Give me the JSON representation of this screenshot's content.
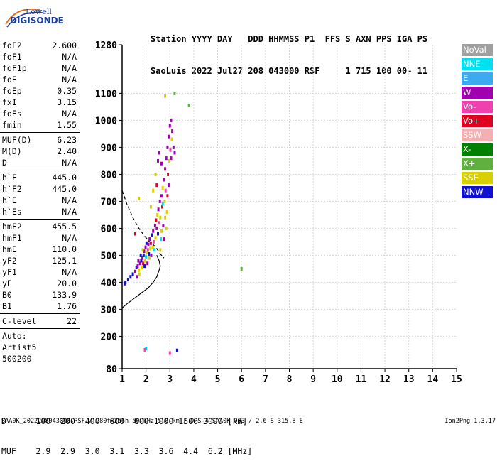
{
  "logo": {
    "brand": "Lowell",
    "product": "DIGISONDE"
  },
  "header": {
    "line1": "Station YYYY DAY   DDD HHMMSS P1  FFS S AXN PPS IGA PS",
    "line2": "SaoLuis 2022 Jul27 208 043000 RSF     1 715 100 00- 11"
  },
  "params": {
    "group1": [
      {
        "label": "foF2",
        "value": "2.600"
      },
      {
        "label": "foF1",
        "value": "N/A"
      },
      {
        "label": "foF1p",
        "value": "N/A"
      },
      {
        "label": "foE",
        "value": "N/A"
      },
      {
        "label": "foEp",
        "value": "0.35"
      },
      {
        "label": "fxI",
        "value": "3.15"
      },
      {
        "label": "foEs",
        "value": "N/A"
      },
      {
        "label": "fmin",
        "value": "1.55"
      }
    ],
    "group2": [
      {
        "label": "MUF(D)",
        "value": "6.23"
      },
      {
        "label": "M(D)",
        "value": "2.40"
      },
      {
        "label": "D",
        "value": "N/A"
      }
    ],
    "group3": [
      {
        "label": "h`F",
        "value": "445.0"
      },
      {
        "label": "h`F2",
        "value": "445.0"
      },
      {
        "label": "h`E",
        "value": "N/A"
      },
      {
        "label": "h`Es",
        "value": "N/A"
      }
    ],
    "group4": [
      {
        "label": "hmF2",
        "value": "455.5"
      },
      {
        "label": "hmF1",
        "value": "N/A"
      },
      {
        "label": "hmE",
        "value": "110.0"
      },
      {
        "label": "yF2",
        "value": "125.1"
      },
      {
        "label": "yF1",
        "value": "N/A"
      },
      {
        "label": "yE",
        "value": "20.0"
      },
      {
        "label": "B0",
        "value": "133.9"
      },
      {
        "label": "B1",
        "value": "1.76"
      }
    ],
    "group5": [
      {
        "label": "C-level",
        "value": "22"
      }
    ],
    "auto": [
      "Auto:",
      "Artist5",
      "500200"
    ]
  },
  "legend": [
    {
      "label": "NoVal",
      "color": "#a0a0a0"
    },
    {
      "label": "NNE",
      "color": "#00e0f0"
    },
    {
      "label": "E",
      "color": "#3caaf0"
    },
    {
      "label": "W",
      "color": "#a000b0"
    },
    {
      "label": "Vo-",
      "color": "#f040b0"
    },
    {
      "label": "Vo+",
      "color": "#e00020"
    },
    {
      "label": "SSW",
      "color": "#f4b0b0"
    },
    {
      "label": "X-",
      "color": "#008000"
    },
    {
      "label": "X+",
      "color": "#60b040"
    },
    {
      "label": "SSE",
      "color": "#d8d000"
    },
    {
      "label": "NNW",
      "color": "#1010d0"
    }
  ],
  "muf_table": {
    "d_label": "D",
    "d_values": [
      "100",
      "200",
      "400",
      "600",
      "800",
      "1000",
      "1500",
      "3000"
    ],
    "d_unit": "[km]",
    "muf_label": "MUF",
    "muf_values": [
      "2.9",
      "2.9",
      "3.0",
      "3.1",
      "3.3",
      "3.6",
      "4.4",
      "6.2"
    ],
    "muf_unit": "[MHz]"
  },
  "footer": {
    "info": "SAA0K_2022208043000.RSF / 280fx256h 50 kHz 5.0 km / DPS-4 SAA0K 903 / 2.6 S 315.8 E",
    "version": "Ion2Png 1.3.17"
  },
  "chart_data": {
    "type": "scatter",
    "xlim": [
      1,
      15
    ],
    "ylim": [
      80,
      1280
    ],
    "x_ticks": [
      1,
      2,
      3,
      4,
      5,
      6,
      7,
      8,
      9,
      10,
      11,
      12,
      13,
      14,
      15
    ],
    "y_ticks": [
      80,
      200,
      300,
      400,
      500,
      600,
      700,
      800,
      900,
      1000,
      1100,
      1280
    ],
    "grid": true,
    "profile_solid": [
      [
        1.0,
        305
      ],
      [
        1.2,
        320
      ],
      [
        1.5,
        340
      ],
      [
        1.8,
        360
      ],
      [
        2.1,
        380
      ],
      [
        2.3,
        400
      ],
      [
        2.45,
        420
      ],
      [
        2.55,
        445
      ],
      [
        2.6,
        460
      ],
      [
        2.55,
        480
      ],
      [
        2.45,
        500
      ]
    ],
    "profile_dashed": [
      [
        1.0,
        740
      ],
      [
        1.2,
        690
      ],
      [
        1.45,
        640
      ],
      [
        1.7,
        600
      ],
      [
        1.95,
        570
      ],
      [
        2.15,
        550
      ],
      [
        2.3,
        540
      ],
      [
        2.45,
        525
      ],
      [
        2.6,
        505
      ],
      [
        2.75,
        490
      ]
    ],
    "echoes": [
      {
        "x": 1.1,
        "y": 395,
        "c": "NNW"
      },
      {
        "x": 1.14,
        "y": 400,
        "c": "NNW"
      },
      {
        "x": 1.25,
        "y": 410,
        "c": "NNW"
      },
      {
        "x": 1.35,
        "y": 420,
        "c": "NNW"
      },
      {
        "x": 1.45,
        "y": 430,
        "c": "NNW"
      },
      {
        "x": 1.55,
        "y": 440,
        "c": "W"
      },
      {
        "x": 1.6,
        "y": 455,
        "c": "NNW"
      },
      {
        "x": 1.65,
        "y": 460,
        "c": "W"
      },
      {
        "x": 1.7,
        "y": 445,
        "c": "SSE"
      },
      {
        "x": 1.75,
        "y": 470,
        "c": "W"
      },
      {
        "x": 1.8,
        "y": 480,
        "c": "NNW"
      },
      {
        "x": 1.82,
        "y": 455,
        "c": "SSE"
      },
      {
        "x": 1.85,
        "y": 490,
        "c": "W"
      },
      {
        "x": 1.88,
        "y": 470,
        "c": "Vo+"
      },
      {
        "x": 1.9,
        "y": 500,
        "c": "NNW"
      },
      {
        "x": 1.92,
        "y": 515,
        "c": "W"
      },
      {
        "x": 1.95,
        "y": 480,
        "c": "SSE"
      },
      {
        "x": 1.98,
        "y": 530,
        "c": "W"
      },
      {
        "x": 2.0,
        "y": 495,
        "c": "NNE"
      },
      {
        "x": 2.02,
        "y": 545,
        "c": "NNW"
      },
      {
        "x": 2.05,
        "y": 510,
        "c": "SSE"
      },
      {
        "x": 2.08,
        "y": 520,
        "c": "Vo-"
      },
      {
        "x": 2.1,
        "y": 540,
        "c": "W"
      },
      {
        "x": 2.12,
        "y": 505,
        "c": "NNW"
      },
      {
        "x": 2.15,
        "y": 560,
        "c": "W"
      },
      {
        "x": 2.18,
        "y": 525,
        "c": "SSE"
      },
      {
        "x": 2.2,
        "y": 545,
        "c": "Vo+"
      },
      {
        "x": 2.22,
        "y": 500,
        "c": "W"
      },
      {
        "x": 2.25,
        "y": 575,
        "c": "NNW"
      },
      {
        "x": 2.28,
        "y": 530,
        "c": "SSE"
      },
      {
        "x": 2.3,
        "y": 590,
        "c": "W"
      },
      {
        "x": 2.32,
        "y": 550,
        "c": "Vo-"
      },
      {
        "x": 2.35,
        "y": 520,
        "c": "NNE"
      },
      {
        "x": 2.38,
        "y": 610,
        "c": "W"
      },
      {
        "x": 2.4,
        "y": 565,
        "c": "SSE"
      },
      {
        "x": 2.42,
        "y": 630,
        "c": "Vo+"
      },
      {
        "x": 2.45,
        "y": 600,
        "c": "W"
      },
      {
        "x": 2.48,
        "y": 650,
        "c": "SSE"
      },
      {
        "x": 2.5,
        "y": 580,
        "c": "NNW"
      },
      {
        "x": 2.52,
        "y": 670,
        "c": "W"
      },
      {
        "x": 2.55,
        "y": 620,
        "c": "Vo-"
      },
      {
        "x": 2.58,
        "y": 700,
        "c": "W"
      },
      {
        "x": 2.6,
        "y": 640,
        "c": "SSE"
      },
      {
        "x": 2.62,
        "y": 560,
        "c": "NNE"
      },
      {
        "x": 2.65,
        "y": 720,
        "c": "W"
      },
      {
        "x": 2.68,
        "y": 680,
        "c": "Vo+"
      },
      {
        "x": 2.7,
        "y": 750,
        "c": "SSE"
      },
      {
        "x": 2.72,
        "y": 610,
        "c": "W"
      },
      {
        "x": 2.75,
        "y": 780,
        "c": "W"
      },
      {
        "x": 2.78,
        "y": 700,
        "c": "SSE"
      },
      {
        "x": 2.8,
        "y": 820,
        "c": "W"
      },
      {
        "x": 2.82,
        "y": 740,
        "c": "Vo-"
      },
      {
        "x": 2.85,
        "y": 860,
        "c": "W"
      },
      {
        "x": 2.88,
        "y": 660,
        "c": "SSE"
      },
      {
        "x": 2.9,
        "y": 900,
        "c": "W"
      },
      {
        "x": 2.92,
        "y": 800,
        "c": "Vo+"
      },
      {
        "x": 2.95,
        "y": 940,
        "c": "W"
      },
      {
        "x": 2.98,
        "y": 850,
        "c": "SSE"
      },
      {
        "x": 3.0,
        "y": 980,
        "c": "W"
      },
      {
        "x": 3.02,
        "y": 890,
        "c": "Vo-"
      },
      {
        "x": 3.05,
        "y": 1000,
        "c": "W"
      },
      {
        "x": 3.08,
        "y": 930,
        "c": "SSE"
      },
      {
        "x": 3.1,
        "y": 960,
        "c": "W"
      },
      {
        "x": 2.96,
        "y": 760,
        "c": "W"
      },
      {
        "x": 2.9,
        "y": 720,
        "c": "Vo+"
      },
      {
        "x": 3.05,
        "y": 860,
        "c": "W"
      },
      {
        "x": 3.15,
        "y": 900,
        "c": "W"
      },
      {
        "x": 3.2,
        "y": 880,
        "c": "W"
      },
      {
        "x": 2.4,
        "y": 800,
        "c": "SSE"
      },
      {
        "x": 2.3,
        "y": 740,
        "c": "SSE"
      },
      {
        "x": 2.2,
        "y": 680,
        "c": "SSE"
      },
      {
        "x": 2.5,
        "y": 850,
        "c": "W"
      },
      {
        "x": 2.55,
        "y": 880,
        "c": "W"
      },
      {
        "x": 2.45,
        "y": 760,
        "c": "Vo+"
      },
      {
        "x": 2.7,
        "y": 690,
        "c": "NNE"
      },
      {
        "x": 2.65,
        "y": 590,
        "c": "SSE"
      },
      {
        "x": 2.8,
        "y": 640,
        "c": "SSE"
      },
      {
        "x": 2.75,
        "y": 560,
        "c": "W"
      },
      {
        "x": 2.85,
        "y": 600,
        "c": "SSE"
      },
      {
        "x": 2.6,
        "y": 520,
        "c": "SSE"
      },
      {
        "x": 1.68,
        "y": 480,
        "c": "W"
      },
      {
        "x": 1.78,
        "y": 500,
        "c": "NNW"
      },
      {
        "x": 1.86,
        "y": 520,
        "c": "SSE"
      },
      {
        "x": 1.94,
        "y": 460,
        "c": "NNW"
      },
      {
        "x": 2.06,
        "y": 470,
        "c": "W"
      },
      {
        "x": 2.14,
        "y": 490,
        "c": "SSE"
      },
      {
        "x": 1.72,
        "y": 430,
        "c": "SSE"
      },
      {
        "x": 1.62,
        "y": 420,
        "c": "W"
      },
      {
        "x": 3.2,
        "y": 1100,
        "c": "X+"
      },
      {
        "x": 3.8,
        "y": 1055,
        "c": "X+"
      },
      {
        "x": 2.8,
        "y": 1090,
        "c": "SSE"
      },
      {
        "x": 2.0,
        "y": 155,
        "c": "NNE"
      },
      {
        "x": 1.95,
        "y": 150,
        "c": "Vo-"
      },
      {
        "x": 3.3,
        "y": 148,
        "c": "NNW"
      },
      {
        "x": 3.0,
        "y": 138,
        "c": "Vo-"
      },
      {
        "x": 6.0,
        "y": 450,
        "c": "X+"
      },
      {
        "x": 2.65,
        "y": 840,
        "c": "W"
      },
      {
        "x": 1.55,
        "y": 580,
        "c": "Vo+"
      },
      {
        "x": 1.7,
        "y": 710,
        "c": "SSE"
      }
    ]
  }
}
